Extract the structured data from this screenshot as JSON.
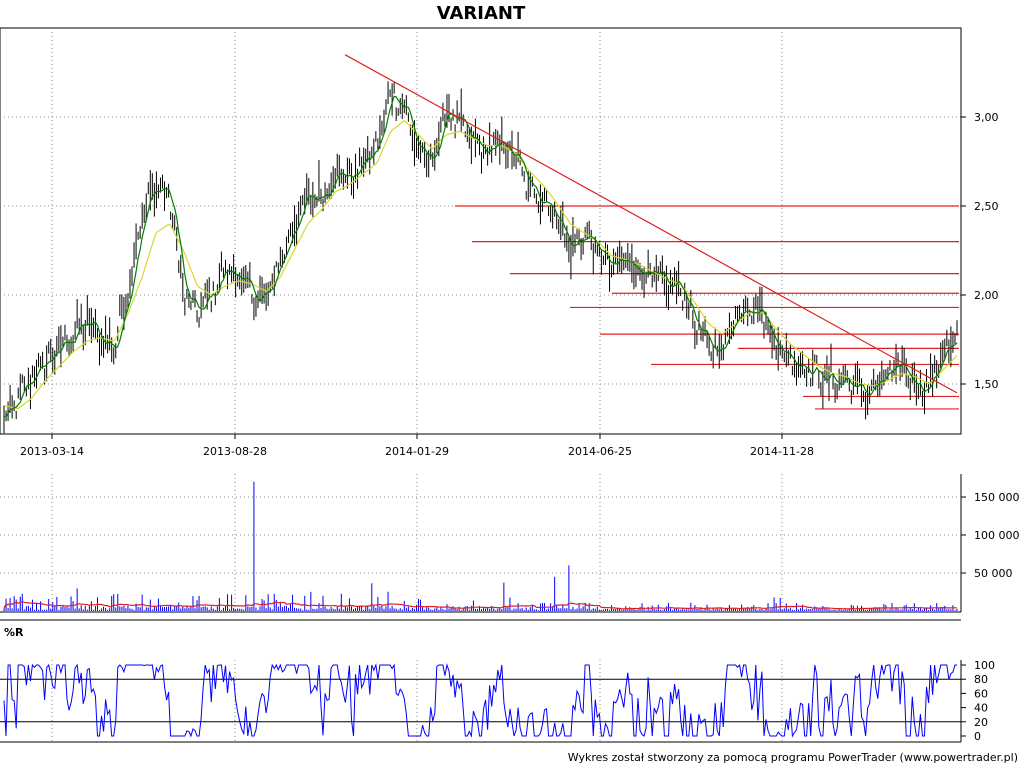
{
  "chart_data": [
    {
      "type": "candlestick",
      "title": "VARIANT",
      "xticks": [
        "2013-03-14",
        "2013-08-28",
        "2014-01-29",
        "2014-06-25",
        "2014-11-28"
      ],
      "yticks": [
        "1,50",
        "2,00",
        "2,50",
        "3,00"
      ],
      "ylim": [
        1.25,
        3.4
      ],
      "grid": true,
      "price_close_approx": [
        1.3,
        1.4,
        1.55,
        1.62,
        1.7,
        1.78,
        1.85,
        1.75,
        1.7,
        2.05,
        2.45,
        2.62,
        2.55,
        2.0,
        1.9,
        2.0,
        2.15,
        2.1,
        2.0,
        1.98,
        2.2,
        2.4,
        2.55,
        2.55,
        2.7,
        2.65,
        2.75,
        2.82,
        3.15,
        3.05,
        2.8,
        2.75,
        3.05,
        2.95,
        2.85,
        2.8,
        2.85,
        2.78,
        2.6,
        2.55,
        2.45,
        2.25,
        2.35,
        2.25,
        2.15,
        2.2,
        2.15,
        2.1,
        2.05,
        2.05,
        1.85,
        1.7,
        1.7,
        1.9,
        1.95,
        1.88,
        1.7,
        1.65,
        1.6,
        1.55,
        1.52,
        1.52,
        1.45,
        1.48,
        1.55,
        1.6,
        1.5,
        1.48,
        1.7,
        1.72
      ],
      "ma_approx": [
        1.38,
        1.36,
        1.42,
        1.52,
        1.6,
        1.68,
        1.74,
        1.76,
        1.74,
        1.9,
        2.1,
        2.35,
        2.4,
        2.25,
        2.05,
        2.0,
        2.05,
        2.08,
        2.06,
        2.02,
        2.1,
        2.25,
        2.4,
        2.48,
        2.58,
        2.62,
        2.68,
        2.74,
        2.92,
        2.98,
        2.9,
        2.82,
        2.9,
        2.92,
        2.88,
        2.84,
        2.84,
        2.8,
        2.7,
        2.62,
        2.52,
        2.4,
        2.35,
        2.3,
        2.22,
        2.2,
        2.17,
        2.13,
        2.09,
        2.06,
        1.96,
        1.84,
        1.78,
        1.84,
        1.9,
        1.9,
        1.8,
        1.72,
        1.66,
        1.6,
        1.56,
        1.54,
        1.5,
        1.49,
        1.52,
        1.56,
        1.54,
        1.5,
        1.58,
        1.66
      ],
      "support_levels": [
        2.5,
        2.3,
        2.12,
        2.01,
        1.93,
        1.78,
        1.7,
        1.61,
        1.43,
        1.36
      ],
      "trendline": {
        "from": [
          3.35,
          0.0
        ],
        "to": [
          1.45,
          1.0
        ]
      }
    },
    {
      "type": "bar",
      "yticks": [
        "50 000",
        "100 000",
        "150 000"
      ],
      "ylim": [
        0,
        175000
      ],
      "spike_max": 170000
    },
    {
      "type": "line",
      "title": "%R",
      "yticks": [
        "0",
        "20",
        "40",
        "60",
        "80",
        "100"
      ],
      "ylim": [
        0,
        100
      ],
      "levels": [
        20,
        80
      ]
    }
  ],
  "footer": "Wykres został stworzony za pomocą programu PowerTrader (www.powertrader.pl)",
  "colors": {
    "candles": "#000000",
    "green_ma": "#008000",
    "yellow_ma": "#d8d830",
    "trend": "#e02020",
    "volume": "#0000ff",
    "volume_avg": "#e02020",
    "williams": "#0000ff"
  }
}
